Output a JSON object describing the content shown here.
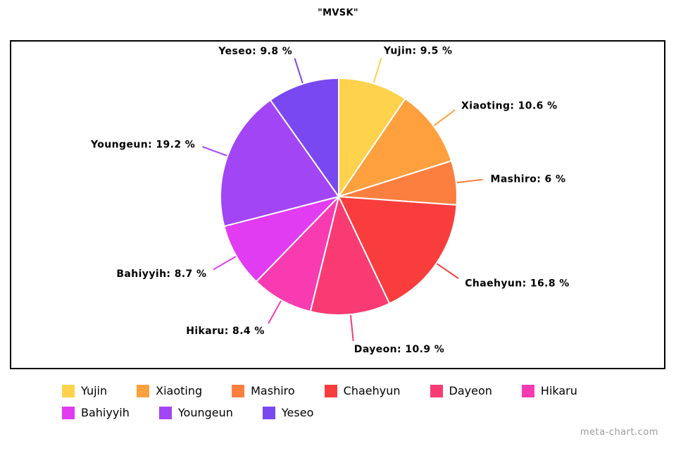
{
  "page": {
    "watermark": "meta-chart.com"
  },
  "chart_data": {
    "type": "pie",
    "title": "\"MVSK\"",
    "labels": [
      "Yujin",
      "Xiaoting",
      "Mashiro",
      "Chaehyun",
      "Dayeon",
      "Hikaru",
      "Bahiyyih",
      "Youngeun",
      "Yeseo"
    ],
    "values": [
      9.5,
      10.6,
      6,
      16.8,
      10.9,
      8.4,
      8.7,
      19.2,
      9.8
    ],
    "unit": "%",
    "colors": [
      "#FFD24D",
      "#FFA03E",
      "#FC7F40",
      "#F93D3D",
      "#FA3A72",
      "#F93BB2",
      "#E13CF2",
      "#A245F4",
      "#7A48F0"
    ],
    "start_angle": 0,
    "direction": "clockwise",
    "grid": false,
    "legend_position": "bottom",
    "legend_row_break": 6,
    "label_format": "{label}: {value} %"
  }
}
